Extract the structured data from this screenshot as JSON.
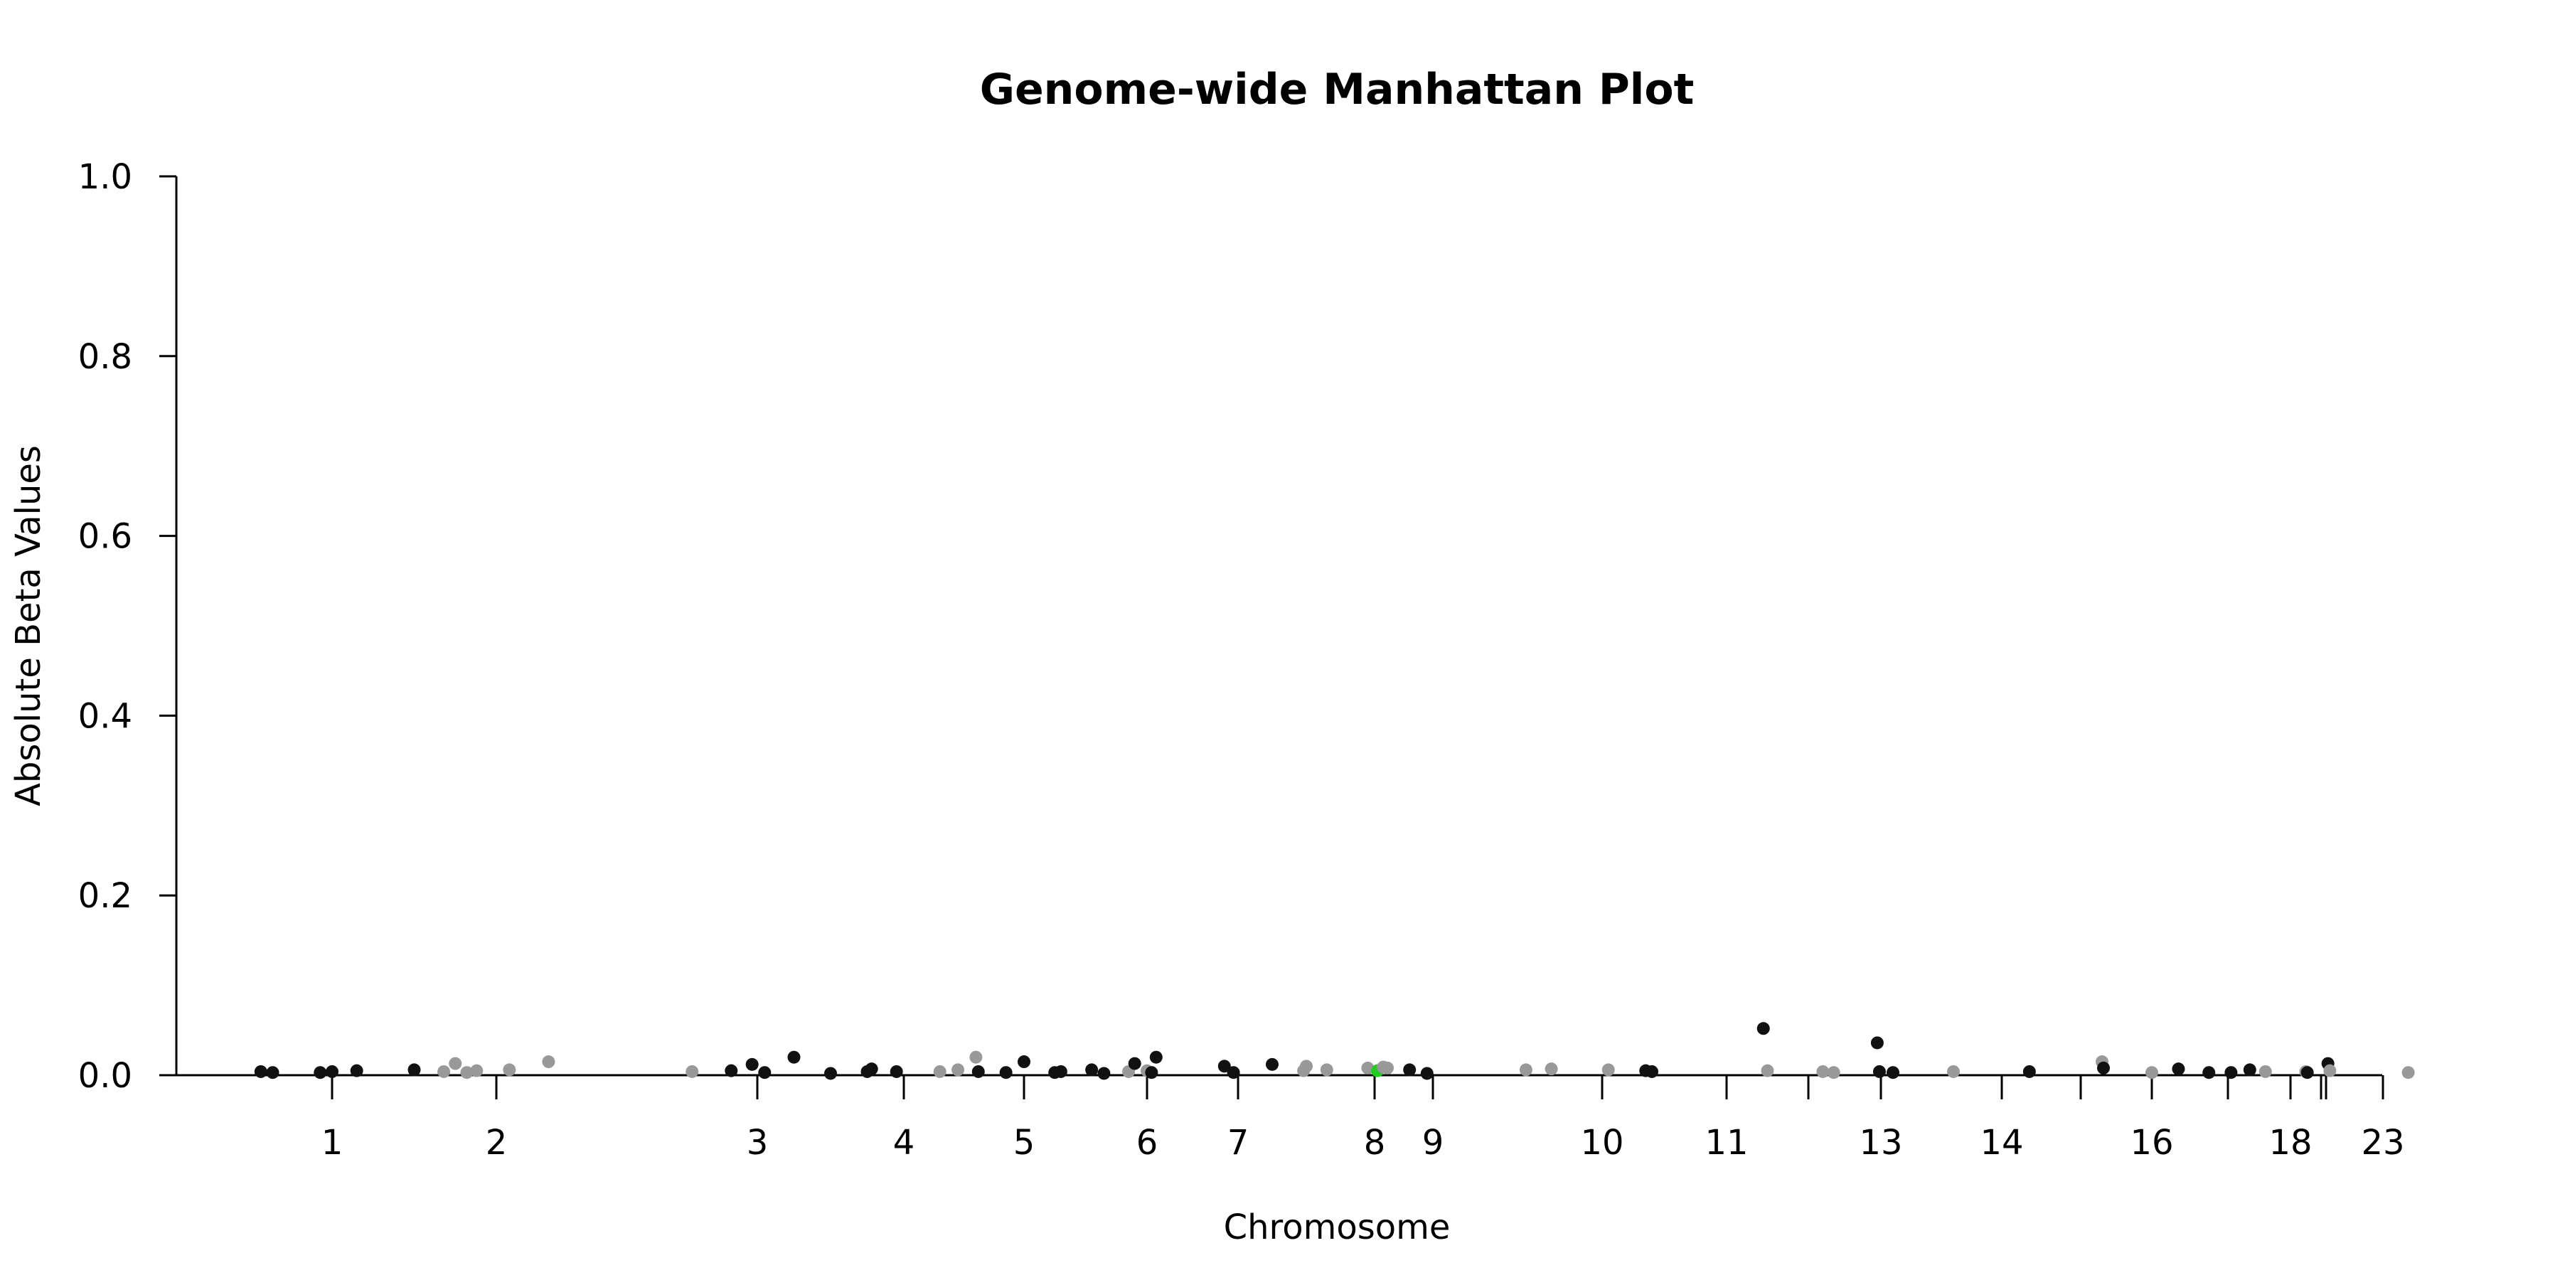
{
  "chart_data": {
    "type": "scatter",
    "title": "Genome-wide Manhattan Plot",
    "xlabel": "Chromosome",
    "ylabel": "Absolute Beta Values",
    "ylim": [
      0,
      1
    ],
    "yticks": [
      "0.0",
      "0.2",
      "0.4",
      "0.6",
      "0.8",
      "1.0"
    ],
    "grid": false,
    "legend": "none",
    "colors": {
      "odd": "#111111",
      "even": "#999999",
      "highlight": "#22cc22"
    },
    "xticks": [
      {
        "label": "1",
        "pos": 1.0
      },
      {
        "label": "2",
        "pos": 2.0
      },
      {
        "label": "3",
        "pos": 3.0
      },
      {
        "label": "4",
        "pos": 4.0
      },
      {
        "label": "5",
        "pos": 5.0
      },
      {
        "label": "6",
        "pos": 6.0
      },
      {
        "label": "7",
        "pos": 7.0
      },
      {
        "label": "8",
        "pos": 8.0
      },
      {
        "label": "9",
        "pos": 9.0
      },
      {
        "label": "10",
        "pos": 10.0
      },
      {
        "label": "11",
        "pos": 11.0
      },
      {
        "label": "",
        "pos": 12.0
      },
      {
        "label": "13",
        "pos": 13.0
      },
      {
        "label": "14",
        "pos": 14.0
      },
      {
        "label": "",
        "pos": 15.0
      },
      {
        "label": "16",
        "pos": 16.0
      },
      {
        "label": "",
        "pos": 17.0
      },
      {
        "label": "18",
        "pos": 18.0
      },
      {
        "label": "",
        "pos": 19.0
      },
      {
        "label": "",
        "pos": 20.0
      },
      {
        "label": "23",
        "pos": 23.0
      }
    ],
    "points": [
      {
        "x": 0.7,
        "y": 0.004,
        "color": "odd"
      },
      {
        "x": 0.75,
        "y": 0.003,
        "color": "odd"
      },
      {
        "x": 0.95,
        "y": 0.003,
        "color": "odd"
      },
      {
        "x": 1.0,
        "y": 0.004,
        "color": "odd"
      },
      {
        "x": 1.15,
        "y": 0.005,
        "color": "odd"
      },
      {
        "x": 1.5,
        "y": 0.006,
        "color": "odd"
      },
      {
        "x": 1.68,
        "y": 0.004,
        "color": "even"
      },
      {
        "x": 1.75,
        "y": 0.013,
        "color": "even"
      },
      {
        "x": 1.82,
        "y": 0.003,
        "color": "even"
      },
      {
        "x": 1.88,
        "y": 0.005,
        "color": "even"
      },
      {
        "x": 2.05,
        "y": 0.006,
        "color": "even"
      },
      {
        "x": 2.2,
        "y": 0.015,
        "color": "even"
      },
      {
        "x": 2.75,
        "y": 0.004,
        "color": "even"
      },
      {
        "x": 2.9,
        "y": 0.005,
        "color": "odd"
      },
      {
        "x": 2.98,
        "y": 0.012,
        "color": "odd"
      },
      {
        "x": 3.05,
        "y": 0.003,
        "color": "odd"
      },
      {
        "x": 3.25,
        "y": 0.02,
        "color": "odd"
      },
      {
        "x": 3.5,
        "y": 0.002,
        "color": "odd"
      },
      {
        "x": 3.75,
        "y": 0.004,
        "color": "odd"
      },
      {
        "x": 3.78,
        "y": 0.007,
        "color": "odd"
      },
      {
        "x": 3.95,
        "y": 0.004,
        "color": "odd"
      },
      {
        "x": 4.3,
        "y": 0.004,
        "color": "even"
      },
      {
        "x": 4.45,
        "y": 0.006,
        "color": "even"
      },
      {
        "x": 4.6,
        "y": 0.02,
        "color": "even"
      },
      {
        "x": 4.62,
        "y": 0.004,
        "color": "odd"
      },
      {
        "x": 4.85,
        "y": 0.003,
        "color": "odd"
      },
      {
        "x": 5.0,
        "y": 0.015,
        "color": "odd"
      },
      {
        "x": 5.25,
        "y": 0.003,
        "color": "odd"
      },
      {
        "x": 5.3,
        "y": 0.004,
        "color": "odd"
      },
      {
        "x": 5.55,
        "y": 0.006,
        "color": "odd"
      },
      {
        "x": 5.65,
        "y": 0.002,
        "color": "odd"
      },
      {
        "x": 5.85,
        "y": 0.004,
        "color": "even"
      },
      {
        "x": 5.9,
        "y": 0.013,
        "color": "odd"
      },
      {
        "x": 6.0,
        "y": 0.005,
        "color": "even"
      },
      {
        "x": 6.05,
        "y": 0.003,
        "color": "odd"
      },
      {
        "x": 6.1,
        "y": 0.02,
        "color": "odd"
      },
      {
        "x": 6.85,
        "y": 0.01,
        "color": "odd"
      },
      {
        "x": 6.95,
        "y": 0.003,
        "color": "odd"
      },
      {
        "x": 7.25,
        "y": 0.012,
        "color": "odd"
      },
      {
        "x": 7.48,
        "y": 0.005,
        "color": "even"
      },
      {
        "x": 7.5,
        "y": 0.01,
        "color": "even"
      },
      {
        "x": 7.65,
        "y": 0.006,
        "color": "even"
      },
      {
        "x": 7.95,
        "y": 0.008,
        "color": "even"
      },
      {
        "x": 8.05,
        "y": 0.005,
        "color": "highlight"
      },
      {
        "x": 8.15,
        "y": 0.009,
        "color": "even"
      },
      {
        "x": 8.22,
        "y": 0.008,
        "color": "even"
      },
      {
        "x": 8.6,
        "y": 0.006,
        "color": "odd"
      },
      {
        "x": 8.9,
        "y": 0.002,
        "color": "odd"
      },
      {
        "x": 9.55,
        "y": 0.006,
        "color": "even"
      },
      {
        "x": 9.7,
        "y": 0.007,
        "color": "even"
      },
      {
        "x": 10.05,
        "y": 0.006,
        "color": "even"
      },
      {
        "x": 10.35,
        "y": 0.005,
        "color": "odd"
      },
      {
        "x": 10.4,
        "y": 0.004,
        "color": "odd"
      },
      {
        "x": 11.45,
        "y": 0.052,
        "color": "odd"
      },
      {
        "x": 11.5,
        "y": 0.005,
        "color": "even"
      },
      {
        "x": 12.2,
        "y": 0.004,
        "color": "even"
      },
      {
        "x": 12.35,
        "y": 0.003,
        "color": "even"
      },
      {
        "x": 12.95,
        "y": 0.036,
        "color": "odd"
      },
      {
        "x": 12.98,
        "y": 0.004,
        "color": "odd"
      },
      {
        "x": 13.1,
        "y": 0.003,
        "color": "odd"
      },
      {
        "x": 13.6,
        "y": 0.004,
        "color": "even"
      },
      {
        "x": 14.35,
        "y": 0.004,
        "color": "odd"
      },
      {
        "x": 15.3,
        "y": 0.015,
        "color": "even"
      },
      {
        "x": 15.32,
        "y": 0.008,
        "color": "odd"
      },
      {
        "x": 16.0,
        "y": 0.003,
        "color": "even"
      },
      {
        "x": 16.35,
        "y": 0.007,
        "color": "odd"
      },
      {
        "x": 16.75,
        "y": 0.003,
        "color": "odd"
      },
      {
        "x": 17.05,
        "y": 0.003,
        "color": "odd"
      },
      {
        "x": 17.35,
        "y": 0.006,
        "color": "odd"
      },
      {
        "x": 17.6,
        "y": 0.004,
        "color": "even"
      },
      {
        "x": 18.5,
        "y": 0.004,
        "color": "even"
      },
      {
        "x": 18.55,
        "y": 0.003,
        "color": "odd"
      },
      {
        "x": 20.1,
        "y": 0.013,
        "color": "odd"
      },
      {
        "x": 20.2,
        "y": 0.005,
        "color": "even"
      },
      {
        "x": 23.4,
        "y": 0.003,
        "color": "even"
      }
    ]
  }
}
